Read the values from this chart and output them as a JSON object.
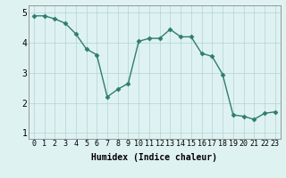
{
  "x": [
    0,
    1,
    2,
    3,
    4,
    5,
    6,
    7,
    8,
    9,
    10,
    11,
    12,
    13,
    14,
    15,
    16,
    17,
    18,
    19,
    20,
    21,
    22,
    23
  ],
  "y": [
    4.9,
    4.9,
    4.8,
    4.65,
    4.3,
    3.8,
    3.6,
    2.2,
    2.45,
    2.65,
    4.05,
    4.15,
    4.15,
    4.45,
    4.2,
    4.2,
    3.65,
    3.55,
    2.95,
    1.6,
    1.55,
    1.45,
    1.65,
    1.7
  ],
  "xlabel": "Humidex (Indice chaleur)",
  "ylim": [
    0.8,
    5.25
  ],
  "xlim": [
    -0.5,
    23.5
  ],
  "yticks": [
    1,
    2,
    3,
    4,
    5
  ],
  "xtick_labels": [
    "0",
    "1",
    "2",
    "3",
    "4",
    "5",
    "6",
    "7",
    "8",
    "9",
    "10",
    "11",
    "12",
    "13",
    "14",
    "15",
    "16",
    "17",
    "18",
    "19",
    "20",
    "21",
    "22",
    "23"
  ],
  "line_color": "#2e7d6e",
  "marker": "D",
  "marker_size": 2.5,
  "bg_color": "#dff2f2",
  "grid_color": "#b8d8d8",
  "axis_color": "#888888",
  "tick_fontsize": 6,
  "xlabel_fontsize": 7,
  "ytick_fontsize": 7
}
